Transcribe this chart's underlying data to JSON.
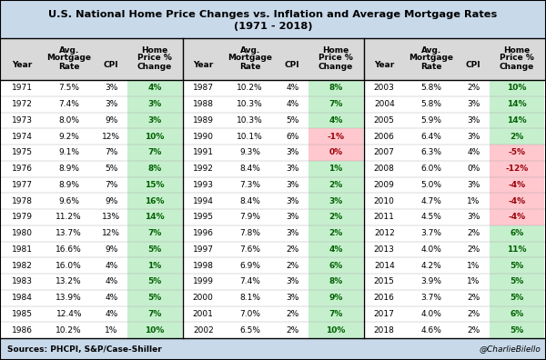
{
  "title1": "U.S. National Home Price Changes vs. Inflation and Average Mortgage Rates",
  "title2": "(1971 - 2018)",
  "footer_left": "Sources: PHCPI, S&P/Case-Shiller",
  "footer_right": "@CharlieBilello",
  "data": [
    [
      1971,
      "7.5%",
      "3%",
      4
    ],
    [
      1972,
      "7.4%",
      "3%",
      3
    ],
    [
      1973,
      "8.0%",
      "9%",
      3
    ],
    [
      1974,
      "9.2%",
      "12%",
      10
    ],
    [
      1975,
      "9.1%",
      "7%",
      7
    ],
    [
      1976,
      "8.9%",
      "5%",
      8
    ],
    [
      1977,
      "8.9%",
      "7%",
      15
    ],
    [
      1978,
      "9.6%",
      "9%",
      16
    ],
    [
      1979,
      "11.2%",
      "13%",
      14
    ],
    [
      1980,
      "13.7%",
      "12%",
      7
    ],
    [
      1981,
      "16.6%",
      "9%",
      5
    ],
    [
      1982,
      "16.0%",
      "4%",
      1
    ],
    [
      1983,
      "13.2%",
      "4%",
      5
    ],
    [
      1984,
      "13.9%",
      "4%",
      5
    ],
    [
      1985,
      "12.4%",
      "4%",
      7
    ],
    [
      1986,
      "10.2%",
      "1%",
      10
    ],
    [
      1987,
      "10.2%",
      "4%",
      8
    ],
    [
      1988,
      "10.3%",
      "4%",
      7
    ],
    [
      1989,
      "10.3%",
      "5%",
      4
    ],
    [
      1990,
      "10.1%",
      "6%",
      -1
    ],
    [
      1991,
      "9.3%",
      "3%",
      0
    ],
    [
      1992,
      "8.4%",
      "3%",
      1
    ],
    [
      1993,
      "7.3%",
      "3%",
      2
    ],
    [
      1994,
      "8.4%",
      "3%",
      3
    ],
    [
      1995,
      "7.9%",
      "3%",
      2
    ],
    [
      1996,
      "7.8%",
      "3%",
      2
    ],
    [
      1997,
      "7.6%",
      "2%",
      4
    ],
    [
      1998,
      "6.9%",
      "2%",
      6
    ],
    [
      1999,
      "7.4%",
      "3%",
      8
    ],
    [
      2000,
      "8.1%",
      "3%",
      9
    ],
    [
      2001,
      "7.0%",
      "2%",
      7
    ],
    [
      2002,
      "6.5%",
      "2%",
      10
    ],
    [
      2003,
      "5.8%",
      "2%",
      10
    ],
    [
      2004,
      "5.8%",
      "3%",
      14
    ],
    [
      2005,
      "5.9%",
      "3%",
      14
    ],
    [
      2006,
      "6.4%",
      "3%",
      2
    ],
    [
      2007,
      "6.3%",
      "4%",
      -5
    ],
    [
      2008,
      "6.0%",
      "0%",
      -12
    ],
    [
      2009,
      "5.0%",
      "3%",
      -4
    ],
    [
      2010,
      "4.7%",
      "1%",
      -4
    ],
    [
      2011,
      "4.5%",
      "3%",
      -4
    ],
    [
      2012,
      "3.7%",
      "2%",
      6
    ],
    [
      2013,
      "4.0%",
      "2%",
      11
    ],
    [
      2014,
      "4.2%",
      "1%",
      5
    ],
    [
      2015,
      "3.9%",
      "1%",
      5
    ],
    [
      2016,
      "3.7%",
      "2%",
      5
    ],
    [
      2017,
      "4.0%",
      "2%",
      6
    ],
    [
      2018,
      "4.6%",
      "2%",
      5
    ]
  ],
  "bg_color": "#c8d9ea",
  "table_bg": "#ffffff",
  "green_bg": "#c6efce",
  "green_text": "#006100",
  "red_bg": "#ffc7ce",
  "red_text": "#9c0006",
  "black_text": "#000000",
  "border_color": "#000000",
  "header_bg": "#d9d9d9"
}
